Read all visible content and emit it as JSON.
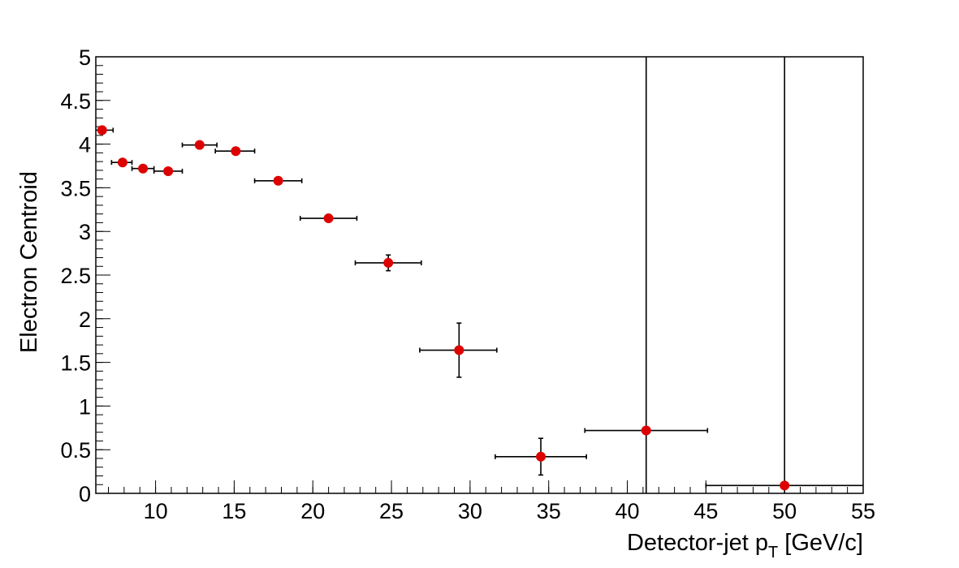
{
  "chart_data": {
    "type": "scatter",
    "xlabel": "Detector-jet p",
    "xlabel_sub": "T",
    "xlabel_unit": " [GeV/c]",
    "ylabel": "Electron Centroid",
    "xlim": [
      6.2,
      55
    ],
    "ylim": [
      0,
      5
    ],
    "x_ticks": [
      10,
      15,
      20,
      25,
      30,
      35,
      40,
      45,
      50,
      55
    ],
    "y_ticks": [
      0,
      0.5,
      1,
      1.5,
      2,
      2.5,
      3,
      3.5,
      4,
      4.5,
      5
    ],
    "y_tick_labels": [
      "0",
      "0.5",
      "1",
      "1.5",
      "2",
      "2.5",
      "3",
      "3.5",
      "4",
      "4.5",
      "5"
    ],
    "grid": false,
    "marker_color": "#dd0000",
    "errorbar_color": "#000000",
    "points": [
      {
        "x": 6.6,
        "y": 4.16,
        "xerr_lo": 0.4,
        "xerr_hi": 0.7,
        "yerr": 0.0
      },
      {
        "x": 7.9,
        "y": 3.79,
        "xerr_lo": 0.7,
        "xerr_hi": 0.6,
        "yerr": 0.0
      },
      {
        "x": 9.2,
        "y": 3.72,
        "xerr_lo": 0.7,
        "xerr_hi": 0.7,
        "yerr": 0.0
      },
      {
        "x": 10.8,
        "y": 3.69,
        "xerr_lo": 0.9,
        "xerr_hi": 0.9,
        "yerr": 0.0
      },
      {
        "x": 12.8,
        "y": 3.99,
        "xerr_lo": 1.1,
        "xerr_hi": 1.1,
        "yerr": 0.0
      },
      {
        "x": 15.1,
        "y": 3.92,
        "xerr_lo": 1.3,
        "xerr_hi": 1.2,
        "yerr": 0.0
      },
      {
        "x": 17.8,
        "y": 3.58,
        "xerr_lo": 1.5,
        "xerr_hi": 1.5,
        "yerr": 0.0
      },
      {
        "x": 21.0,
        "y": 3.15,
        "xerr_lo": 1.8,
        "xerr_hi": 1.8,
        "yerr": 0.0
      },
      {
        "x": 24.8,
        "y": 2.64,
        "xerr_lo": 2.1,
        "xerr_hi": 2.1,
        "yerr": 0.09
      },
      {
        "x": 29.3,
        "y": 1.64,
        "xerr_lo": 2.5,
        "xerr_hi": 2.4,
        "yerr": 0.31
      },
      {
        "x": 34.5,
        "y": 0.42,
        "xerr_lo": 2.9,
        "xerr_hi": 2.9,
        "yerr": 0.21
      },
      {
        "x": 41.2,
        "y": 0.72,
        "xerr_lo": 3.9,
        "xerr_hi": 3.9,
        "yerr": 5.0
      },
      {
        "x": 50.0,
        "y": 0.09,
        "xerr_lo": 5.0,
        "xerr_hi": 5.0,
        "yerr": 5.0
      }
    ]
  }
}
